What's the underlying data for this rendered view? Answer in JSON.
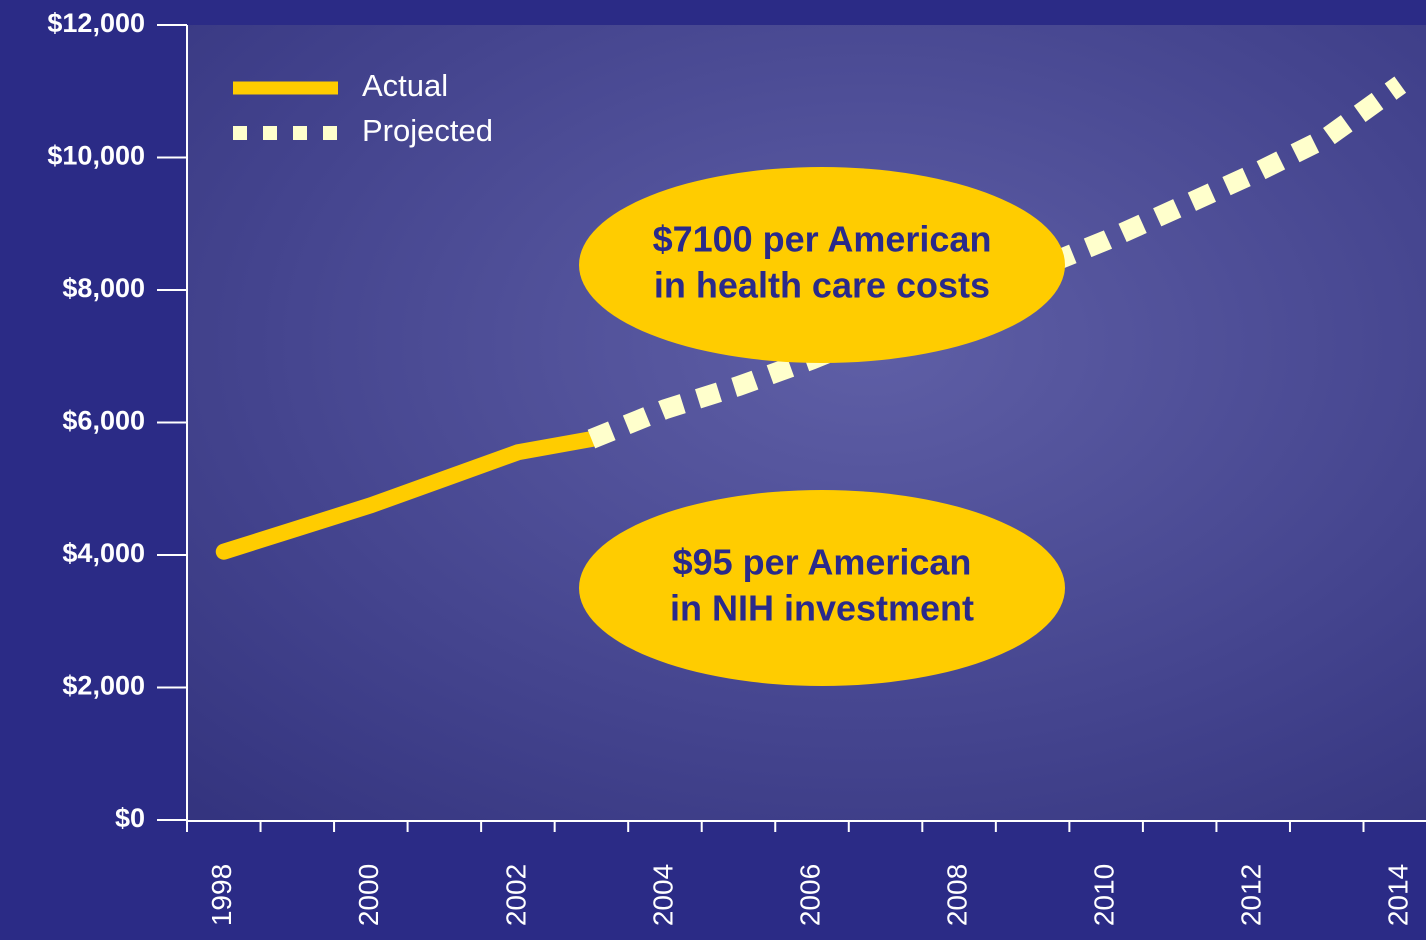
{
  "chart_data": {
    "type": "line",
    "x": [
      1998,
      1999,
      2000,
      2001,
      2002,
      2003,
      2004,
      2005,
      2006,
      2007,
      2008,
      2009,
      2010,
      2011,
      2012,
      2013,
      2014
    ],
    "series": [
      {
        "name": "Actual",
        "color": "#ffcc00",
        "style": "solid",
        "values": [
          4050,
          4400,
          4750,
          5150,
          5550,
          5750,
          null,
          null,
          null,
          null,
          null,
          null,
          null,
          null,
          null,
          null,
          null
        ]
      },
      {
        "name": "Projected",
        "color": "#ffffcc",
        "style": "dashed",
        "values": [
          null,
          null,
          null,
          null,
          null,
          5750,
          6200,
          6550,
          6950,
          7400,
          7850,
          8300,
          8750,
          9250,
          9750,
          10300,
          11100
        ]
      }
    ],
    "xlim": [
      1997.5,
      2014.35
    ],
    "xticks": [
      1998,
      2000,
      2002,
      2004,
      2006,
      2008,
      2010,
      2012,
      2014
    ],
    "ylim": [
      0,
      12000
    ],
    "yticks": [
      {
        "value": 0,
        "label": "$0"
      },
      {
        "value": 2000,
        "label": "$2,000"
      },
      {
        "value": 4000,
        "label": "$4,000"
      },
      {
        "value": 6000,
        "label": "$6,000"
      },
      {
        "value": 8000,
        "label": "$8,000"
      },
      {
        "value": 10000,
        "label": "$10,000"
      },
      {
        "value": 12000,
        "label": "$12,000"
      }
    ],
    "annotations": [
      {
        "lines": [
          "$7100 per American",
          "in health care costs"
        ]
      },
      {
        "lines": [
          "$95 per American",
          "in NIH investment"
        ]
      }
    ],
    "legend": "upper left"
  }
}
